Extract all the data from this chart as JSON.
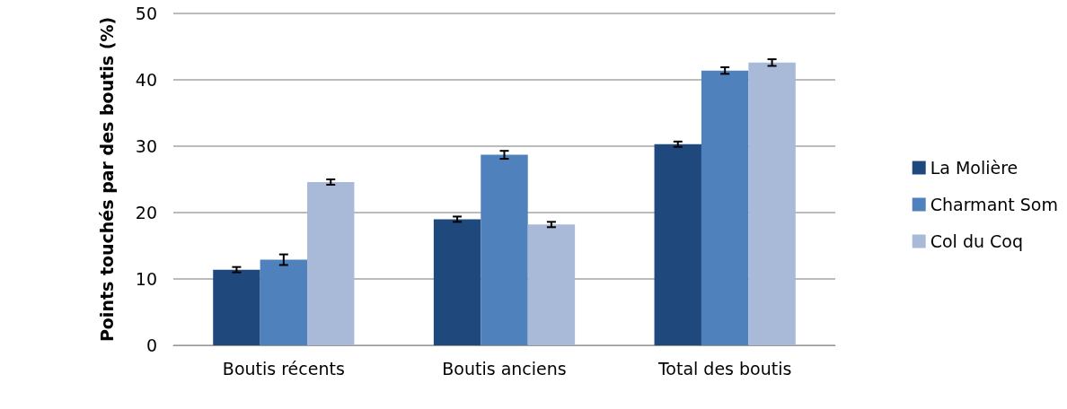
{
  "chart_data": {
    "type": "bar",
    "ylabel": "Points touchés par des boutis (%)",
    "categories": [
      "Boutis récents",
      "Boutis anciens",
      "Total des boutis"
    ],
    "series": [
      {
        "name": "La Molière",
        "color": "#1f497d",
        "values": [
          11.4,
          19.0,
          30.3
        ],
        "errors": [
          0.4,
          0.4,
          0.4
        ]
      },
      {
        "name": "Charmant Som",
        "color": "#4f81bd",
        "values": [
          12.9,
          28.7,
          41.4
        ],
        "errors": [
          0.8,
          0.6,
          0.5
        ]
      },
      {
        "name": "Col du Coq",
        "color": "#a9b9d8",
        "values": [
          24.6,
          18.2,
          42.6
        ],
        "errors": [
          0.4,
          0.4,
          0.5
        ]
      }
    ],
    "ylim": [
      0,
      50
    ],
    "yticks": [
      0,
      10,
      20,
      30,
      40,
      50
    ],
    "grid": "y",
    "legend": "right"
  }
}
